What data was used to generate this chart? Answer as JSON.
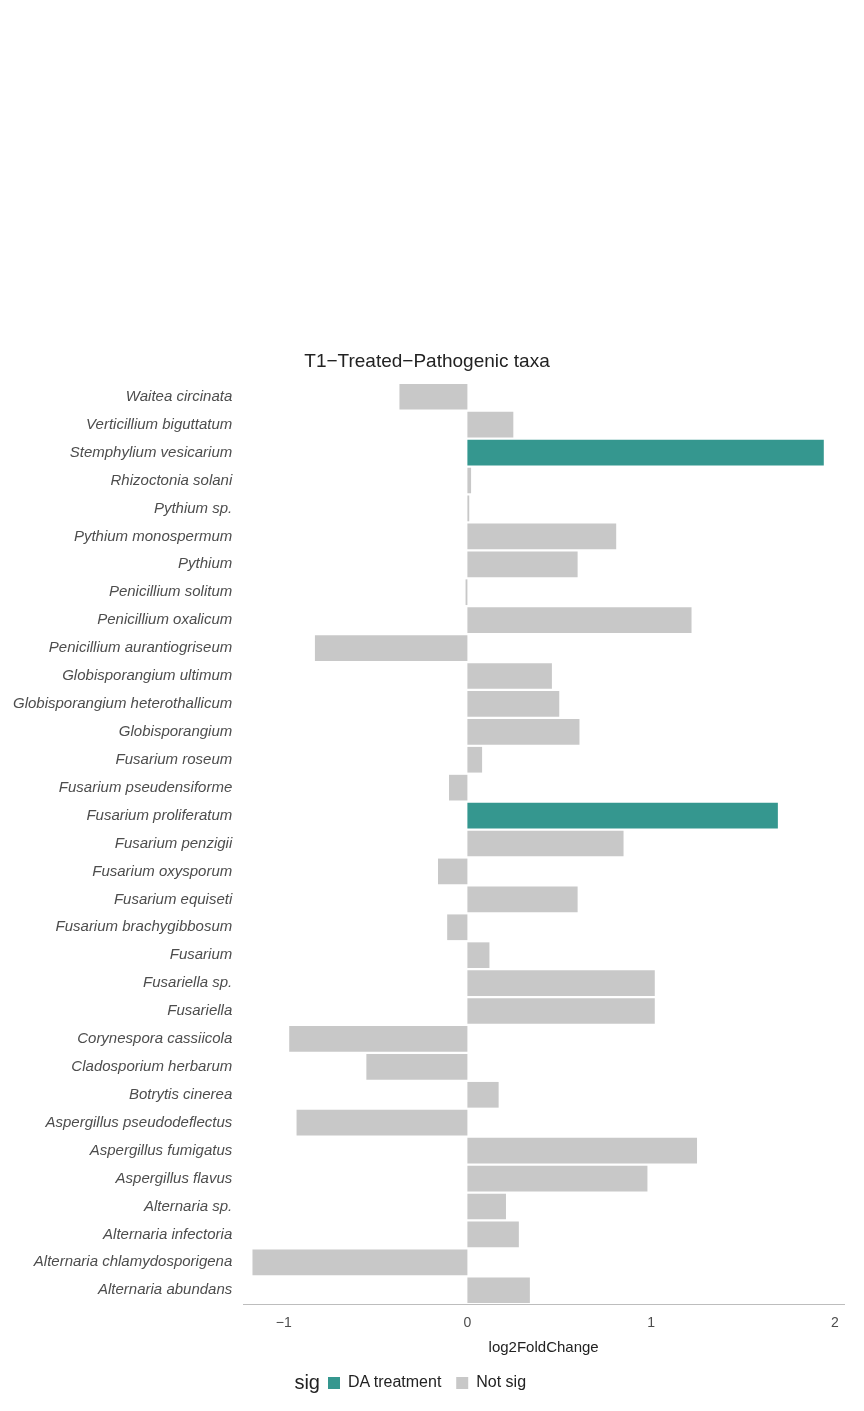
{
  "chart_data": {
    "type": "bar",
    "orientation": "horizontal",
    "stacked": true,
    "title": "T1−Treated−Pathogenic taxa",
    "xlabel": "log2FoldChange",
    "legend_title": "sig",
    "legend": "bottom",
    "grid": false,
    "categories": [
      "Waitea circinata",
      "Verticillium biguttatum",
      "Stemphylium vesicarium",
      "Rhizoctonia solani",
      "Pythium sp.",
      "Pythium monospermum",
      "Pythium",
      "Penicillium solitum",
      "Penicillium oxalicum",
      "Penicillium aurantiogriseum",
      "Globisporangium ultimum",
      "Globisporangium heterothallicum",
      "Globisporangium",
      "Fusarium roseum",
      "Fusarium pseudensiforme",
      "Fusarium proliferatum",
      "Fusarium penzigii",
      "Fusarium oxysporum",
      "Fusarium equiseti",
      "Fusarium brachygibbosum",
      "Fusarium",
      "Fusariella sp.",
      "Fusariella",
      "Corynespora cassiicola",
      "Cladosporium herbarum",
      "Botrytis cinerea",
      "Aspergillus pseudodeflectus",
      "Aspergillus fumigatus",
      "Aspergillus flavus",
      "Alternaria sp.",
      "Alternaria infectoria",
      "Alternaria chlamydosporigena",
      "Alternaria abundans"
    ],
    "series": [
      {
        "name": "DA treatment",
        "color": "#35978f",
        "values": [
          null,
          null,
          1.94,
          null,
          null,
          null,
          null,
          null,
          null,
          null,
          null,
          null,
          null,
          null,
          null,
          1.69,
          null,
          null,
          null,
          null,
          null,
          null,
          null,
          null,
          null,
          null,
          null,
          null,
          null,
          null,
          null,
          null,
          null
        ]
      },
      {
        "name": "Not sig",
        "color": "#c8c8c8",
        "values": [
          -0.37,
          0.25,
          null,
          0.02,
          0.01,
          0.81,
          0.6,
          -0.01,
          1.22,
          -0.83,
          0.46,
          0.5,
          0.61,
          0.08,
          -0.1,
          null,
          0.85,
          -0.16,
          0.6,
          -0.11,
          0.12,
          1.02,
          1.02,
          -0.97,
          -0.55,
          0.17,
          -0.93,
          1.25,
          0.98,
          0.21,
          0.28,
          -1.17,
          0.34
        ]
      }
    ],
    "xlim": [
      -1.22,
      2.05
    ],
    "xticks": [
      {
        "value": -1,
        "label": "−1"
      },
      0,
      1,
      2
    ]
  }
}
